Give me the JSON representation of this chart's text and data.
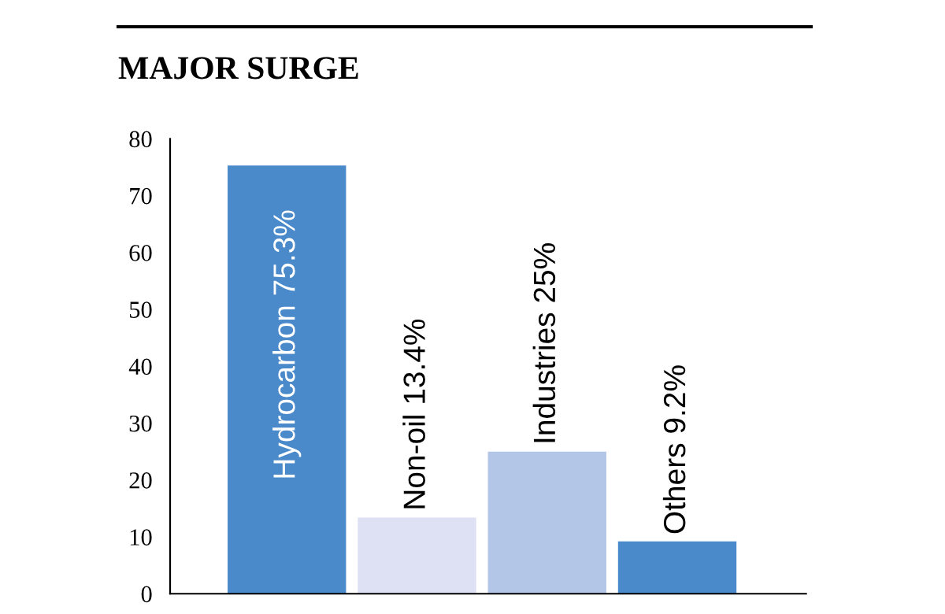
{
  "chart_data": {
    "type": "bar",
    "title": "MAJOR SURGE",
    "categories": [
      null,
      null,
      null,
      null
    ],
    "values": [
      75.3,
      13.4,
      25,
      9.2
    ],
    "colors": [
      "#4a8acb",
      "#dde1f3",
      "#b4c6e8",
      "#4a8acb"
    ],
    "value_labels": [
      "Hydrocarbon 75.3%",
      "Non-oil 13.4%",
      "Industries 25%",
      "Others 9.2%"
    ],
    "ylim": [
      0,
      80
    ],
    "yticks": [
      0,
      10,
      20,
      30,
      40,
      50,
      60,
      70,
      80
    ],
    "grid": false,
    "legend": false
  }
}
